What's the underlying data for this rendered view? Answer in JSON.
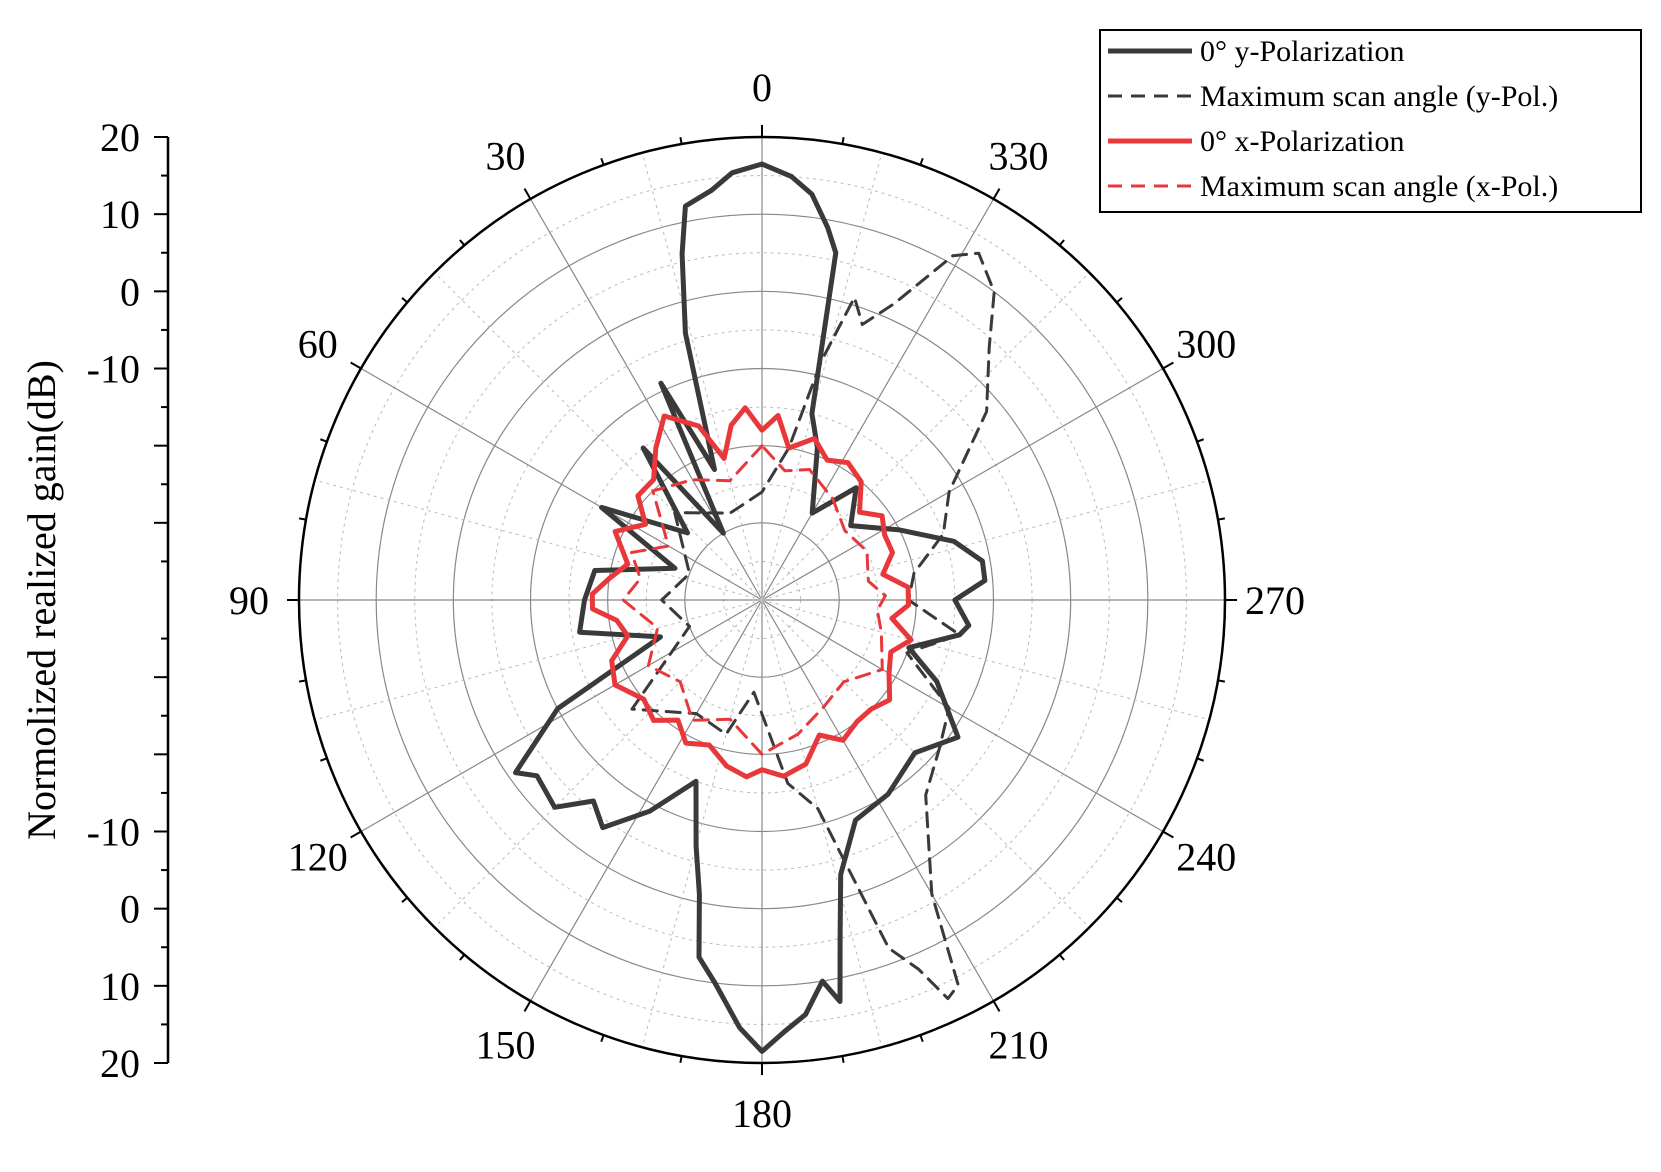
{
  "chart_data": {
    "type": "polar",
    "ylabel": "Normolized realized gain(dB)",
    "radial_axis": {
      "range_db": [
        -40,
        20
      ],
      "tick_values": [
        -40,
        -30,
        -20,
        -10,
        0,
        10,
        20
      ],
      "labeled_tick_values": [
        20,
        10,
        0,
        -10
      ],
      "tick_labels_upper": [
        "20",
        "10",
        "0",
        "-10"
      ],
      "tick_labels_lower": [
        "-10",
        "0",
        "10",
        "20"
      ],
      "minor_ticks_db": [
        -35,
        -25,
        -15,
        -5,
        5,
        15
      ]
    },
    "angular_axis": {
      "direction": "counterclockwise",
      "zero_location": "top",
      "tick_step_deg": 30,
      "labels": [
        {
          "angle": 0,
          "text": "0"
        },
        {
          "angle": 30,
          "text": "30"
        },
        {
          "angle": 60,
          "text": "60"
        },
        {
          "angle": 90,
          "text": "90"
        },
        {
          "angle": 120,
          "text": "120"
        },
        {
          "angle": 150,
          "text": "150"
        },
        {
          "angle": 180,
          "text": "180"
        },
        {
          "angle": 210,
          "text": "210"
        },
        {
          "angle": 240,
          "text": "240"
        },
        {
          "angle": 270,
          "text": "270"
        },
        {
          "angle": 300,
          "text": "300"
        },
        {
          "angle": 330,
          "text": "330"
        }
      ]
    },
    "grid": true,
    "legend_position": "top-right",
    "series": [
      {
        "name": "0° y-Polarization",
        "color": "#3a3a3a",
        "dash": "solid",
        "points": [
          [
            0,
            16.5
          ],
          [
            4,
            15.5
          ],
          [
            7,
            13.5
          ],
          [
            11,
            12
          ],
          [
            13,
            6
          ],
          [
            16,
            -4
          ],
          [
            20,
            -22
          ],
          [
            25,
            -9
          ],
          [
            30,
            -30
          ],
          [
            38,
            -15
          ],
          [
            48,
            -27
          ],
          [
            60,
            -16
          ],
          [
            70,
            -28
          ],
          [
            80,
            -18
          ],
          [
            90,
            -17
          ],
          [
            100,
            -16
          ],
          [
            110,
            -26
          ],
          [
            118,
            -10
          ],
          [
            125,
            -1
          ],
          [
            128,
            -3
          ],
          [
            135,
            -2
          ],
          [
            140,
            -6
          ],
          [
            145,
            -4
          ],
          [
            152,
            -9
          ],
          [
            160,
            -15
          ],
          [
            165,
            -7
          ],
          [
            168,
            -1
          ],
          [
            170,
            7
          ],
          [
            173,
            10
          ],
          [
            177,
            15.5
          ],
          [
            180,
            18.5
          ],
          [
            183,
            16
          ],
          [
            186,
            14
          ],
          [
            189,
            10
          ],
          [
            191,
            13
          ],
          [
            193,
            5
          ],
          [
            196,
            -3
          ],
          [
            203,
            -9
          ],
          [
            213,
            -10
          ],
          [
            225,
            -12
          ],
          [
            235,
            -9
          ],
          [
            245,
            -15
          ],
          [
            252,
            -20
          ],
          [
            260,
            -14
          ],
          [
            263,
            -13
          ],
          [
            270,
            -15
          ],
          [
            275,
            -11
          ],
          [
            280,
            -11
          ],
          [
            287,
            -14
          ],
          [
            297,
            -20
          ],
          [
            310,
            -25
          ],
          [
            320,
            -21
          ],
          [
            330,
            -27
          ],
          [
            340,
            -19
          ],
          [
            345,
            -15
          ],
          [
            348,
            6
          ],
          [
            350,
            9
          ],
          [
            353,
            13
          ],
          [
            356,
            15
          ],
          [
            360,
            16.5
          ]
        ]
      },
      {
        "name": "Maximum scan angle (y-Pol.)",
        "color": "#3a3a3a",
        "dash": "dashed",
        "points": [
          [
            0,
            -26
          ],
          [
            20,
            -28
          ],
          [
            45,
            -24
          ],
          [
            70,
            -30
          ],
          [
            90,
            -27
          ],
          [
            110,
            -30
          ],
          [
            130,
            -18
          ],
          [
            150,
            -23
          ],
          [
            165,
            -22
          ],
          [
            175,
            -28
          ],
          [
            188,
            -16
          ],
          [
            195,
            -12
          ],
          [
            200,
            8
          ],
          [
            203,
            12
          ],
          [
            205,
            17
          ],
          [
            207,
            16
          ],
          [
            210,
            4
          ],
          [
            220,
            -7
          ],
          [
            230,
            -10
          ],
          [
            240,
            -12
          ],
          [
            250,
            -20
          ],
          [
            260,
            -14
          ],
          [
            270,
            -21
          ],
          [
            280,
            -20
          ],
          [
            290,
            -15
          ],
          [
            300,
            -12
          ],
          [
            310,
            -2
          ],
          [
            318,
            4
          ],
          [
            323,
            10
          ],
          [
            328,
            13
          ],
          [
            331,
            11
          ],
          [
            336,
            2
          ],
          [
            340,
            -2
          ],
          [
            343,
            1
          ],
          [
            346,
            -8
          ],
          [
            350,
            -20
          ],
          [
            360,
            -26
          ]
        ]
      },
      {
        "name": "0° x-Polarization",
        "color": "#e8383c",
        "dash": "solid",
        "points": [
          [
            0,
            -18
          ],
          [
            5,
            -15
          ],
          [
            10,
            -17
          ],
          [
            15,
            -21
          ],
          [
            20,
            -16
          ],
          [
            28,
            -13
          ],
          [
            35,
            -16
          ],
          [
            42,
            -19
          ],
          [
            50,
            -19
          ],
          [
            57,
            -22
          ],
          [
            65,
            -19
          ],
          [
            75,
            -22
          ],
          [
            82,
            -20
          ],
          [
            88,
            -18
          ],
          [
            93,
            -18
          ],
          [
            98,
            -21
          ],
          [
            105,
            -22
          ],
          [
            112,
            -19
          ],
          [
            120,
            -18
          ],
          [
            130,
            -20
          ],
          [
            138,
            -19
          ],
          [
            145,
            -21
          ],
          [
            152,
            -19
          ],
          [
            160,
            -20
          ],
          [
            168,
            -18
          ],
          [
            175,
            -17
          ],
          [
            180,
            -18
          ],
          [
            187,
            -17
          ],
          [
            195,
            -18
          ],
          [
            203,
            -21
          ],
          [
            210,
            -19
          ],
          [
            218,
            -20
          ],
          [
            225,
            -20
          ],
          [
            232,
            -19
          ],
          [
            240,
            -21
          ],
          [
            248,
            -22
          ],
          [
            255,
            -20
          ],
          [
            262,
            -23
          ],
          [
            268,
            -21
          ],
          [
            275,
            -21
          ],
          [
            282,
            -24
          ],
          [
            290,
            -22
          ],
          [
            298,
            -22
          ],
          [
            305,
            -21
          ],
          [
            312,
            -23
          ],
          [
            320,
            -20
          ],
          [
            328,
            -19
          ],
          [
            335,
            -20
          ],
          [
            342,
            -18
          ],
          [
            350,
            -20
          ],
          [
            355,
            -16
          ],
          [
            360,
            -18
          ]
        ]
      },
      {
        "name": "Maximum scan angle (x-Pol.)",
        "color": "#e8383c",
        "dash": "dashed",
        "points": [
          [
            0,
            -20
          ],
          [
            15,
            -24
          ],
          [
            30,
            -22
          ],
          [
            45,
            -20
          ],
          [
            60,
            -26
          ],
          [
            70,
            -22
          ],
          [
            80,
            -24
          ],
          [
            90,
            -22
          ],
          [
            105,
            -26
          ],
          [
            120,
            -23
          ],
          [
            135,
            -25
          ],
          [
            150,
            -22
          ],
          [
            165,
            -24
          ],
          [
            180,
            -20
          ],
          [
            195,
            -22
          ],
          [
            210,
            -24
          ],
          [
            225,
            -25
          ],
          [
            240,
            -22
          ],
          [
            255,
            -24
          ],
          [
            265,
            -25
          ],
          [
            272,
            -24
          ],
          [
            280,
            -26
          ],
          [
            295,
            -25
          ],
          [
            310,
            -26
          ],
          [
            325,
            -24
          ],
          [
            340,
            -22
          ],
          [
            350,
            -23
          ],
          [
            360,
            -20
          ]
        ]
      }
    ]
  }
}
